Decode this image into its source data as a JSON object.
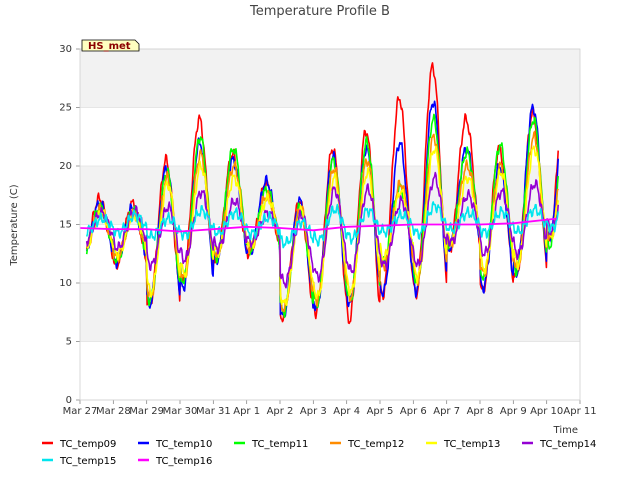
{
  "chart_data": {
    "type": "line",
    "title": "Temperature Profile B",
    "xlabel": "Time",
    "ylabel": "Temperature (C)",
    "badge": "HS_met",
    "ylim": [
      0,
      30
    ],
    "yticks": [
      0,
      5,
      10,
      15,
      20,
      25,
      30
    ],
    "xlim": [
      0,
      15
    ],
    "xtick_labels": [
      "Mar 27",
      "Mar 28",
      "Mar 29",
      "Mar 30",
      "Mar 31",
      "Apr 1",
      "Apr 2",
      "Apr 3",
      "Apr 4",
      "Apr 5",
      "Apr 6",
      "Apr 7",
      "Apr 8",
      "Apr 9",
      "Apr 10",
      "Apr 11"
    ],
    "grid": "banded",
    "legend": "bottom",
    "series": [
      {
        "name": "TC_temp09",
        "color": "#ff0000",
        "daily_max": [
          17.2,
          16.8,
          20.5,
          24.0,
          21.0,
          18.5,
          17.0,
          21.5,
          23.0,
          25.8,
          28.5,
          24.0,
          21.5,
          24.5,
          28.0
        ],
        "daily_min": [
          12.0,
          11.5,
          8.0,
          10.0,
          12.0,
          12.5,
          7.0,
          7.5,
          6.8,
          9.0,
          9.0,
          12.8,
          9.3,
          10.5,
          13.5
        ]
      },
      {
        "name": "TC_temp10",
        "color": "#0000ff",
        "daily_max": [
          16.8,
          16.5,
          19.8,
          22.0,
          20.5,
          18.7,
          17.0,
          20.8,
          21.5,
          22.0,
          25.5,
          21.5,
          20.0,
          25.0,
          27.0
        ],
        "daily_min": [
          12.3,
          11.8,
          8.2,
          9.6,
          11.9,
          12.6,
          7.2,
          7.8,
          8.2,
          9.1,
          9.3,
          13.0,
          9.6,
          10.9,
          13.7
        ]
      },
      {
        "name": "TC_temp11",
        "color": "#00ff00",
        "daily_max": [
          16.5,
          16.2,
          19.5,
          22.5,
          21.5,
          18.0,
          16.5,
          20.5,
          22.0,
          18.2,
          24.0,
          21.2,
          21.8,
          24.0,
          25.0
        ],
        "daily_min": [
          12.5,
          12.0,
          8.5,
          10.2,
          12.2,
          12.8,
          7.5,
          8.2,
          8.5,
          11.8,
          10.0,
          13.2,
          10.5,
          11.0,
          13.2
        ]
      },
      {
        "name": "TC_temp12",
        "color": "#ff8c00",
        "daily_max": [
          16.3,
          16.0,
          19.0,
          21.0,
          20.0,
          17.5,
          16.5,
          19.8,
          20.5,
          18.5,
          22.5,
          20.0,
          20.0,
          22.5,
          24.0
        ],
        "daily_min": [
          12.6,
          12.2,
          8.8,
          10.4,
          12.4,
          13.0,
          7.8,
          8.5,
          8.8,
          11.5,
          10.2,
          13.3,
          10.8,
          11.3,
          13.8
        ]
      },
      {
        "name": "TC_temp13",
        "color": "#ffff00",
        "daily_max": [
          16.0,
          15.8,
          18.5,
          20.0,
          19.0,
          17.2,
          16.2,
          19.0,
          19.5,
          17.8,
          21.5,
          19.0,
          19.5,
          21.5,
          23.0
        ],
        "daily_min": [
          12.8,
          12.5,
          9.2,
          10.8,
          12.6,
          13.2,
          8.2,
          8.8,
          9.2,
          12.2,
          10.5,
          13.5,
          11.2,
          11.6,
          14.0
        ]
      },
      {
        "name": "TC_temp14",
        "color": "#9400d3",
        "daily_max": [
          16.0,
          16.2,
          16.5,
          17.8,
          17.0,
          16.0,
          15.8,
          18.0,
          18.0,
          17.0,
          19.0,
          17.5,
          17.8,
          18.5,
          20.2
        ],
        "daily_min": [
          13.5,
          13.0,
          11.5,
          12.0,
          13.0,
          13.5,
          10.0,
          10.5,
          11.0,
          11.5,
          11.5,
          13.5,
          12.5,
          12.5,
          14.5
        ]
      },
      {
        "name": "TC_temp15",
        "color": "#00e5ee",
        "daily_max": [
          15.5,
          15.8,
          15.5,
          16.2,
          16.0,
          15.6,
          15.2,
          16.3,
          16.2,
          15.8,
          16.6,
          16.0,
          16.1,
          16.3,
          17.6
        ],
        "daily_min": [
          14.4,
          14.3,
          14.0,
          14.1,
          14.3,
          14.2,
          13.4,
          13.6,
          13.8,
          14.4,
          14.2,
          14.6,
          14.3,
          14.4,
          14.7
        ]
      },
      {
        "name": "TC_temp16",
        "color": "#ff00ff",
        "values_x": [
          0,
          1,
          2,
          3,
          4,
          5,
          6,
          7,
          8,
          9,
          10,
          11,
          12,
          13,
          14.3
        ],
        "values_y": [
          14.7,
          14.6,
          14.6,
          14.4,
          14.6,
          14.8,
          14.7,
          14.5,
          14.8,
          14.9,
          15.0,
          15.0,
          15.0,
          15.1,
          15.5
        ]
      }
    ]
  }
}
